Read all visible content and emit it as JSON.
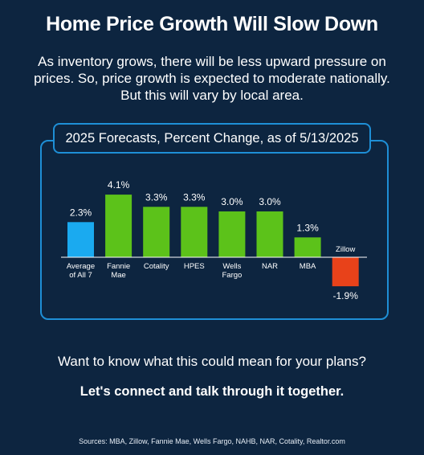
{
  "header": {
    "title": "Home Price Growth Will Slow Down",
    "subtitle": "As inventory grows, there will be less upward pressure on prices. So, price growth is expected to moderate nationally. But this will vary by local area."
  },
  "chart_data": {
    "type": "bar",
    "title": "2025 Forecasts, Percent Change, as of 5/13/2025",
    "categories": [
      [
        "Average",
        "of All 7"
      ],
      [
        "Fannie",
        "Mae"
      ],
      [
        "Cotality"
      ],
      [
        "HPES"
      ],
      [
        "Wells",
        "Fargo"
      ],
      [
        "NAR"
      ],
      [
        "MBA"
      ],
      [
        "Zillow"
      ]
    ],
    "values": [
      2.3,
      4.1,
      3.3,
      3.3,
      3.0,
      3.0,
      1.3,
      -1.9
    ],
    "value_labels": [
      "2.3%",
      "4.1%",
      "3.3%",
      "3.3%",
      "3.0%",
      "3.0%",
      "1.3%",
      "-1.9%"
    ],
    "colors": {
      "average": "#1aaaf0",
      "positive": "#5cc21a",
      "negative": "#e8421a",
      "panel_border": "#1e8fd6",
      "background": "#0d2540"
    },
    "grid": false,
    "legend": "none"
  },
  "cta": {
    "question": "Want to know what this could mean for your plans?",
    "statement": "Let's connect and talk through it together."
  },
  "footer": {
    "sources": "Sources: MBA, Zillow, Fannie Mae, Wells Fargo, NAHB, NAR, Cotality, Realtor.com"
  }
}
